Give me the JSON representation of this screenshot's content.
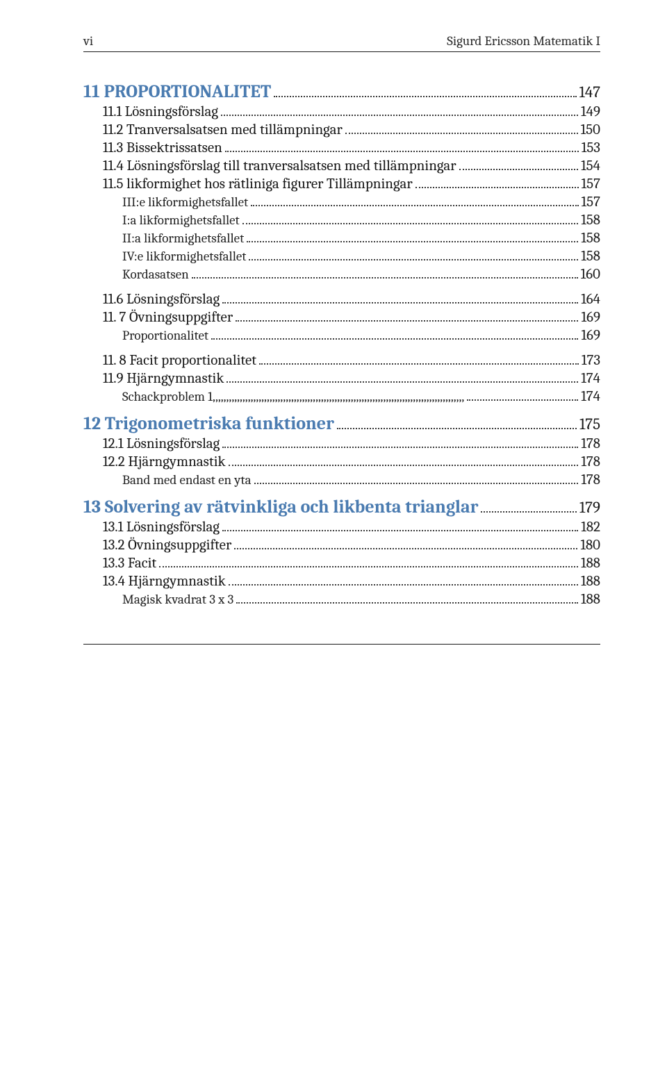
{
  "running_head": {
    "left": "vi",
    "right": "Sigurd Ericsson Matematik I"
  },
  "toc": [
    {
      "level": 1,
      "label": "11 PROPORTIONALITET",
      "page": "147",
      "gap": false
    },
    {
      "level": 2,
      "label": "11.1 Lösningsförslag",
      "page": "149",
      "gap": false
    },
    {
      "level": 2,
      "label": "11.2 Tranversalsatsen med tillämpningar",
      "page": "150",
      "gap": false
    },
    {
      "level": 2,
      "label": "11.3 Bissektrissatsen",
      "page": "153",
      "gap": false
    },
    {
      "level": 2,
      "label": "11.4 Lösningsförslag till tranversalsatsen med tillämpningar",
      "page": "154",
      "gap": false
    },
    {
      "level": 2,
      "label": "11.5 likformighet hos rätliniga figurer Tillämpningar",
      "page": "157",
      "gap": false
    },
    {
      "level": 3,
      "label": "III:e likformighetsfallet",
      "page": "157",
      "gap": false
    },
    {
      "level": 3,
      "label": "I:a likformighetsfallet",
      "page": "158",
      "gap": false
    },
    {
      "level": 3,
      "label": "II:a likformighetsfallet",
      "page": "158",
      "gap": false
    },
    {
      "level": 3,
      "label": "IV:e likformighetsfallet",
      "page": "158",
      "gap": false
    },
    {
      "level": 3,
      "label": "Kordasatsen",
      "page": "160",
      "gap": false
    },
    {
      "level": 2,
      "label": "11.6 Lösningsförslag",
      "page": "164",
      "gap": true
    },
    {
      "level": 2,
      "label": "11. 7 Övningsuppgifter",
      "page": "169",
      "gap": false
    },
    {
      "level": 3,
      "label": "Proportionalitet",
      "page": "169",
      "gap": false
    },
    {
      "level": 2,
      "label": "11. 8 Facit proportionalitet",
      "page": "173",
      "gap": true
    },
    {
      "level": 2,
      "label": "11.9 Hjärngymnastik",
      "page": "174",
      "gap": false
    },
    {
      "level": 3,
      "label": "Schackproblem 1,,,,,,,,,,,,,,,,,,,,,,,,,,,,,,,,,,,,,,,,,,,,,,,,,,,,,,,,,,,,,,,,,,,,,,,,,,,,,,,,,,,,,,,,,,,,,",
      "page": "174",
      "gap": false
    },
    {
      "level": 1,
      "label": "12 Trigonometriska funktioner",
      "page": "175",
      "gap": true
    },
    {
      "level": 2,
      "label": "12.1 Lösningsförslag",
      "page": "178",
      "gap": false
    },
    {
      "level": 2,
      "label": "12.2 Hjärngymnastik",
      "page": "178",
      "gap": false
    },
    {
      "level": 3,
      "label": "Band med endast en yta",
      "page": "178",
      "gap": false
    },
    {
      "level": 1,
      "label": "13 Solvering av rätvinkliga och likbenta trianglar",
      "page": "179",
      "gap": true
    },
    {
      "level": 2,
      "label": "13.1 Lösningsförslag",
      "page": "182",
      "gap": false
    },
    {
      "level": 2,
      "label": "13.2 Övningsuppgifter",
      "page": "180",
      "gap": false
    },
    {
      "level": 2,
      "label": "13.3 Facit",
      "page": "188",
      "gap": false
    },
    {
      "level": 2,
      "label": "13.4 Hjärngymnastik",
      "page": "188",
      "gap": false
    },
    {
      "level": 3,
      "label": "Magisk kvadrat 3 x 3",
      "page": "188",
      "gap": false
    }
  ]
}
